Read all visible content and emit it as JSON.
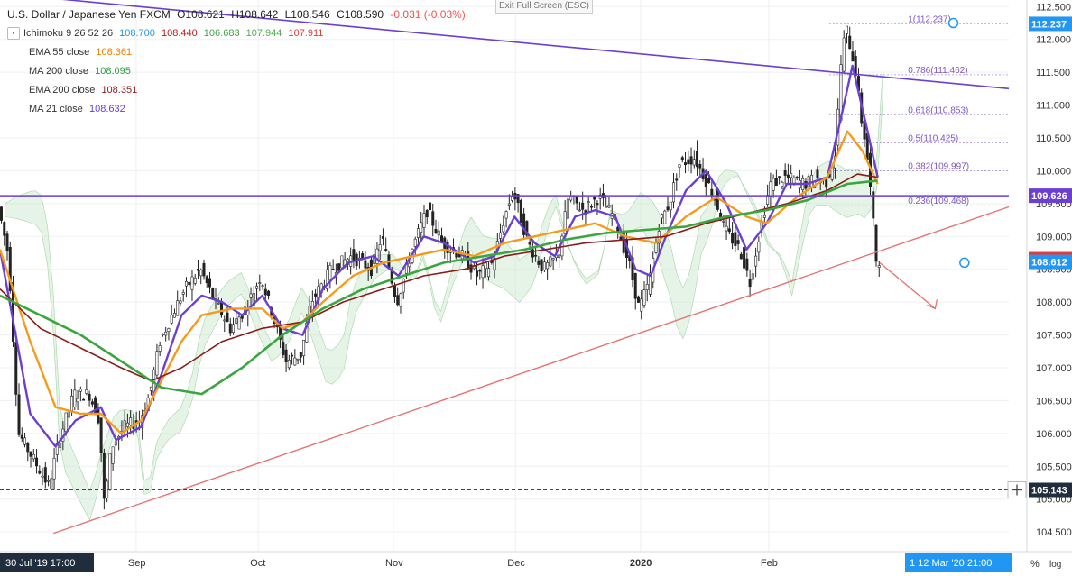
{
  "header": {
    "symbol": "U.S. Dollar / Japanese Yen  FXCM",
    "ohlc": [
      {
        "k": "O",
        "v": "108.621"
      },
      {
        "k": "H",
        "v": "108.642"
      },
      {
        "k": "L",
        "v": "108.546"
      },
      {
        "k": "C",
        "v": "108.590"
      }
    ],
    "change": "-0.031 (-0.03%)",
    "fullscreen": "Exit Full Screen (ESC)"
  },
  "indicators": [
    {
      "name": "Ichimoku 9 26 52 26",
      "values": [
        {
          "v": "108.700",
          "color": "#2196f3"
        },
        {
          "v": "108.440",
          "color": "#b71c1c"
        },
        {
          "v": "106.683",
          "color": "#43a047"
        },
        {
          "v": "107.944",
          "color": "#4caf50"
        },
        {
          "v": "107.911",
          "color": "#e53935"
        }
      ]
    },
    {
      "name": "EMA 55 close",
      "values": [
        {
          "v": "108.361",
          "color": "#f57c00"
        }
      ]
    },
    {
      "name": "MA 200 close",
      "values": [
        {
          "v": "108.095",
          "color": "#2e9e44"
        }
      ]
    },
    {
      "name": "EMA 200 close",
      "values": [
        {
          "v": "108.351",
          "color": "#8b1a1a"
        }
      ]
    },
    {
      "name": "MA 21 close",
      "values": [
        {
          "v": "108.632",
          "color": "#6a3fd1"
        }
      ]
    }
  ],
  "colors": {
    "up": "#26a69a",
    "down": "#ef5350",
    "candle": "#222222",
    "ma21": "#6a3fd1",
    "ema55": "#f59a1b",
    "ma200": "#3aa640",
    "ema200": "#8b1a1a",
    "trend_purple": "#6a3fd1",
    "trend_red": "#e57373",
    "fib": "#7e57c2"
  },
  "chart_data": {
    "type": "candlestick",
    "ylim": [
      104.2,
      112.6
    ],
    "yticks": [
      104.5,
      105.0,
      105.5,
      106.0,
      106.5,
      107.0,
      107.5,
      108.0,
      108.5,
      109.0,
      109.5,
      110.0,
      110.5,
      111.0,
      111.5,
      112.0,
      112.5
    ],
    "ytick_labels": [
      "104.500",
      "105.000",
      "105.500",
      "106.000",
      "106.500",
      "107.000",
      "107.500",
      "108.000",
      "108.500",
      "109.000",
      "109.500",
      "110.000",
      "110.500",
      "111.000",
      "111.500",
      "112.000",
      "112.500"
    ],
    "x_axis": {
      "start_label": "30 Jul '19  17:00",
      "end_label": "1  12 Mar '20   21:00",
      "ticks": [
        {
          "label": "Sep",
          "x": 0.135
        },
        {
          "label": "Oct",
          "x": 0.256
        },
        {
          "label": "Nov",
          "x": 0.39
        },
        {
          "label": "Dec",
          "x": 0.511
        },
        {
          "label": "2020",
          "x": 0.635
        },
        {
          "label": "Feb",
          "x": 0.762
        }
      ]
    },
    "price_path": [
      [
        0,
        109.45
      ],
      [
        0.01,
        108.7
      ],
      [
        0.02,
        106.0
      ],
      [
        0.035,
        105.6
      ],
      [
        0.05,
        105.2
      ],
      [
        0.06,
        105.9
      ],
      [
        0.075,
        106.6
      ],
      [
        0.09,
        106.6
      ],
      [
        0.1,
        106.2
      ],
      [
        0.105,
        104.9
      ],
      [
        0.112,
        105.8
      ],
      [
        0.125,
        106.1
      ],
      [
        0.14,
        106.2
      ],
      [
        0.15,
        106.6
      ],
      [
        0.16,
        107.4
      ],
      [
        0.175,
        107.9
      ],
      [
        0.185,
        108.2
      ],
      [
        0.2,
        108.5
      ],
      [
        0.215,
        108.0
      ],
      [
        0.23,
        107.6
      ],
      [
        0.245,
        107.9
      ],
      [
        0.26,
        108.4
      ],
      [
        0.27,
        107.9
      ],
      [
        0.285,
        107.1
      ],
      [
        0.3,
        107.2
      ],
      [
        0.31,
        108.0
      ],
      [
        0.33,
        108.5
      ],
      [
        0.35,
        108.7
      ],
      [
        0.37,
        108.5
      ],
      [
        0.38,
        109.0
      ],
      [
        0.395,
        108.0
      ],
      [
        0.41,
        108.8
      ],
      [
        0.425,
        109.4
      ],
      [
        0.44,
        108.9
      ],
      [
        0.46,
        108.7
      ],
      [
        0.475,
        108.4
      ],
      [
        0.49,
        108.6
      ],
      [
        0.5,
        109.2
      ],
      [
        0.51,
        109.7
      ],
      [
        0.525,
        108.9
      ],
      [
        0.54,
        108.5
      ],
      [
        0.555,
        108.7
      ],
      [
        0.565,
        109.6
      ],
      [
        0.58,
        109.4
      ],
      [
        0.595,
        109.6
      ],
      [
        0.61,
        109.3
      ],
      [
        0.625,
        108.6
      ],
      [
        0.635,
        107.9
      ],
      [
        0.645,
        108.3
      ],
      [
        0.655,
        109.2
      ],
      [
        0.665,
        109.5
      ],
      [
        0.675,
        110.1
      ],
      [
        0.69,
        110.2
      ],
      [
        0.7,
        109.9
      ],
      [
        0.71,
        109.6
      ],
      [
        0.72,
        109.1
      ],
      [
        0.735,
        108.8
      ],
      [
        0.745,
        108.3
      ],
      [
        0.755,
        109.1
      ],
      [
        0.765,
        109.8
      ],
      [
        0.78,
        109.9
      ],
      [
        0.8,
        109.8
      ],
      [
        0.81,
        109.9
      ],
      [
        0.82,
        109.8
      ],
      [
        0.83,
        110.3
      ],
      [
        0.835,
        111.6
      ],
      [
        0.84,
        112.2
      ],
      [
        0.85,
        111.5
      ],
      [
        0.855,
        110.8
      ],
      [
        0.86,
        110.4
      ],
      [
        0.865,
        109.6
      ],
      [
        0.87,
        108.65
      ]
    ],
    "series": [
      {
        "name": "MA 21 close",
        "points": [
          [
            0,
            108.8
          ],
          [
            0.03,
            106.3
          ],
          [
            0.055,
            105.8
          ],
          [
            0.075,
            106.2
          ],
          [
            0.1,
            106.4
          ],
          [
            0.115,
            105.9
          ],
          [
            0.14,
            106.1
          ],
          [
            0.16,
            106.9
          ],
          [
            0.18,
            107.8
          ],
          [
            0.2,
            108.1
          ],
          [
            0.22,
            108.0
          ],
          [
            0.24,
            107.8
          ],
          [
            0.26,
            108.1
          ],
          [
            0.28,
            107.6
          ],
          [
            0.3,
            107.5
          ],
          [
            0.32,
            108.2
          ],
          [
            0.345,
            108.6
          ],
          [
            0.37,
            108.7
          ],
          [
            0.395,
            108.4
          ],
          [
            0.42,
            109.0
          ],
          [
            0.44,
            108.9
          ],
          [
            0.47,
            108.6
          ],
          [
            0.49,
            108.7
          ],
          [
            0.51,
            109.3
          ],
          [
            0.53,
            108.9
          ],
          [
            0.55,
            108.7
          ],
          [
            0.57,
            109.3
          ],
          [
            0.59,
            109.4
          ],
          [
            0.61,
            109.3
          ],
          [
            0.63,
            108.5
          ],
          [
            0.645,
            108.4
          ],
          [
            0.66,
            109.0
          ],
          [
            0.68,
            109.7
          ],
          [
            0.7,
            110.0
          ],
          [
            0.72,
            109.5
          ],
          [
            0.74,
            108.8
          ],
          [
            0.76,
            109.2
          ],
          [
            0.78,
            109.8
          ],
          [
            0.8,
            109.8
          ],
          [
            0.82,
            109.9
          ],
          [
            0.835,
            110.9
          ],
          [
            0.845,
            111.6
          ],
          [
            0.86,
            110.6
          ],
          [
            0.87,
            109.9
          ]
        ]
      },
      {
        "name": "EMA 55 close",
        "points": [
          [
            0,
            108.8
          ],
          [
            0.03,
            107.4
          ],
          [
            0.055,
            106.4
          ],
          [
            0.08,
            106.3
          ],
          [
            0.1,
            106.3
          ],
          [
            0.12,
            106.0
          ],
          [
            0.14,
            106.2
          ],
          [
            0.16,
            106.8
          ],
          [
            0.18,
            107.4
          ],
          [
            0.2,
            107.8
          ],
          [
            0.23,
            107.9
          ],
          [
            0.26,
            107.9
          ],
          [
            0.28,
            107.6
          ],
          [
            0.3,
            107.7
          ],
          [
            0.32,
            108.0
          ],
          [
            0.35,
            108.4
          ],
          [
            0.38,
            108.6
          ],
          [
            0.41,
            108.7
          ],
          [
            0.44,
            108.8
          ],
          [
            0.47,
            108.7
          ],
          [
            0.5,
            108.9
          ],
          [
            0.53,
            109.0
          ],
          [
            0.56,
            109.1
          ],
          [
            0.59,
            109.2
          ],
          [
            0.62,
            109.0
          ],
          [
            0.65,
            108.9
          ],
          [
            0.68,
            109.3
          ],
          [
            0.71,
            109.6
          ],
          [
            0.74,
            109.3
          ],
          [
            0.76,
            109.2
          ],
          [
            0.79,
            109.6
          ],
          [
            0.82,
            109.9
          ],
          [
            0.84,
            110.6
          ],
          [
            0.855,
            110.3
          ],
          [
            0.87,
            109.8
          ]
        ]
      },
      {
        "name": "EMA 200 close",
        "points": [
          [
            0,
            108.2
          ],
          [
            0.04,
            107.6
          ],
          [
            0.08,
            107.3
          ],
          [
            0.12,
            107.0
          ],
          [
            0.15,
            106.8
          ],
          [
            0.18,
            107.0
          ],
          [
            0.22,
            107.4
          ],
          [
            0.26,
            107.6
          ],
          [
            0.3,
            107.7
          ],
          [
            0.34,
            108.0
          ],
          [
            0.38,
            108.2
          ],
          [
            0.42,
            108.4
          ],
          [
            0.46,
            108.5
          ],
          [
            0.5,
            108.7
          ],
          [
            0.54,
            108.8
          ],
          [
            0.58,
            108.9
          ],
          [
            0.62,
            108.95
          ],
          [
            0.66,
            109.0
          ],
          [
            0.7,
            109.2
          ],
          [
            0.74,
            109.35
          ],
          [
            0.78,
            109.5
          ],
          [
            0.82,
            109.7
          ],
          [
            0.85,
            109.95
          ],
          [
            0.87,
            109.9
          ]
        ]
      },
      {
        "name": "MA 200 close",
        "points": [
          [
            0,
            108.1
          ],
          [
            0.04,
            107.8
          ],
          [
            0.08,
            107.5
          ],
          [
            0.12,
            107.1
          ],
          [
            0.16,
            106.7
          ],
          [
            0.2,
            106.6
          ],
          [
            0.24,
            107.0
          ],
          [
            0.28,
            107.5
          ],
          [
            0.32,
            107.9
          ],
          [
            0.36,
            108.2
          ],
          [
            0.4,
            108.4
          ],
          [
            0.44,
            108.6
          ],
          [
            0.48,
            108.7
          ],
          [
            0.52,
            108.8
          ],
          [
            0.56,
            108.95
          ],
          [
            0.6,
            109.05
          ],
          [
            0.64,
            109.1
          ],
          [
            0.68,
            109.15
          ],
          [
            0.72,
            109.3
          ],
          [
            0.76,
            109.4
          ],
          [
            0.8,
            109.55
          ],
          [
            0.84,
            109.8
          ],
          [
            0.87,
            109.85
          ]
        ]
      }
    ],
    "trendlines": [
      {
        "name": "descending",
        "color": "#6a3fd1",
        "from": [
          0,
          112.7
        ],
        "to": [
          1,
          111.25
        ]
      },
      {
        "name": "ascending",
        "color": "#e57373",
        "from": [
          0.053,
          104.48
        ],
        "to": [
          1,
          109.45
        ]
      }
    ],
    "hlines": [
      {
        "price": 109.62,
        "color": "#6a3fd1",
        "label": "109.626",
        "style": "solid"
      },
      {
        "price": 105.14,
        "color": "#444",
        "label": "105.143",
        "style": "dashed"
      }
    ],
    "price_tags": [
      {
        "price": 108.653,
        "label": "108.653",
        "bg": "#e53935"
      },
      {
        "price": 108.612,
        "label": "108.612",
        "bg": "#2196f3"
      },
      {
        "price": 112.237,
        "label": "112.237",
        "bg": "#2196f3"
      }
    ],
    "fib_levels": [
      {
        "ratio": "1",
        "price": 112.237,
        "label": "1(112.237)"
      },
      {
        "ratio": "0.786",
        "price": 111.462,
        "label": "0.786(111.462)"
      },
      {
        "ratio": "0.618",
        "price": 110.853,
        "label": "0.618(110.853)"
      },
      {
        "ratio": "0.5",
        "price": 110.425,
        "label": "0.5(110.425)"
      },
      {
        "ratio": "0.382",
        "price": 109.997,
        "label": "0.382(109.997)"
      },
      {
        "ratio": "0.236",
        "price": 109.468,
        "label": "0.236(109.468)"
      }
    ]
  }
}
